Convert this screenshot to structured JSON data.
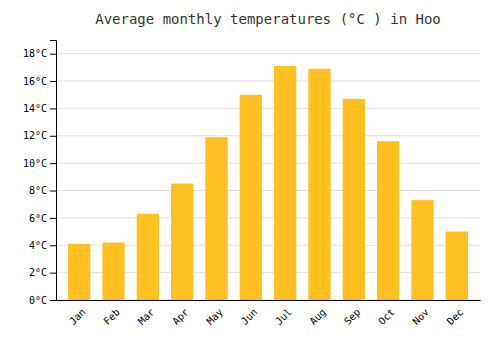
{
  "chart_data": {
    "type": "bar",
    "title": "Average monthly temperatures (°C ) in Hoo",
    "categories": [
      "Jan",
      "Feb",
      "Mar",
      "Apr",
      "May",
      "Jun",
      "Jul",
      "Aug",
      "Sep",
      "Oct",
      "Nov",
      "Dec"
    ],
    "values": [
      4.1,
      4.2,
      6.3,
      8.5,
      11.9,
      15.0,
      17.1,
      16.9,
      14.7,
      11.6,
      7.3,
      5.0
    ],
    "color": "#FFC020",
    "ylim": [
      0,
      19
    ],
    "yticks": [
      {
        "value": 0,
        "label": "0°C"
      },
      {
        "value": 2,
        "label": "2°C"
      },
      {
        "value": 4,
        "label": "4°C"
      },
      {
        "value": 6,
        "label": "6°C"
      },
      {
        "value": 8,
        "label": "8°C"
      },
      {
        "value": 10,
        "label": "10°C"
      },
      {
        "value": 12,
        "label": "12°C"
      },
      {
        "value": 14,
        "label": "14°C"
      },
      {
        "value": 16,
        "label": "16°C"
      },
      {
        "value": 18,
        "label": "18°C"
      }
    ],
    "grid": true
  }
}
